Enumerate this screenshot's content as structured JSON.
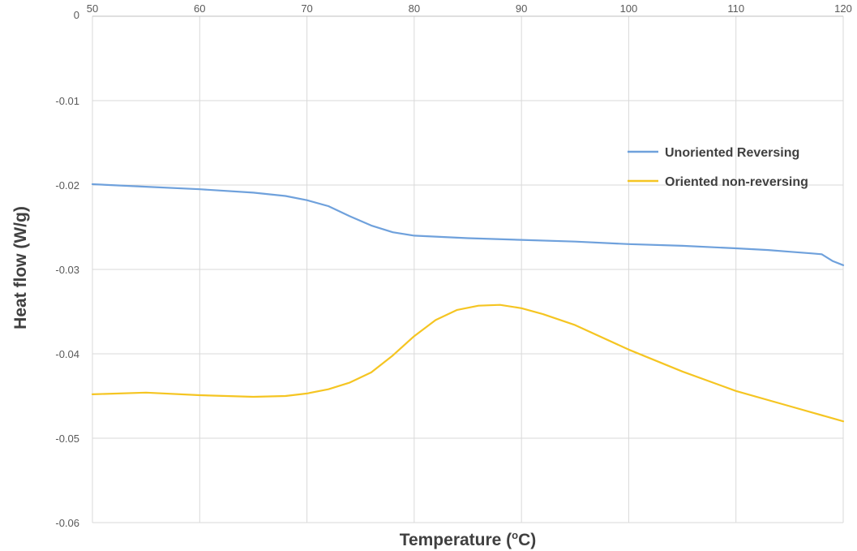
{
  "chart_data": {
    "type": "line",
    "xlabel": "Temperature (",
    "xlabel_sup": "o",
    "xlabel_end": "C)",
    "ylabel": "Heat flow (W/g)",
    "xlim": [
      50,
      120
    ],
    "ylim": [
      -0.06,
      0
    ],
    "x_ticks": [
      50,
      60,
      70,
      80,
      90,
      100,
      110,
      120
    ],
    "x_tick_labels": [
      "50",
      "60",
      "70",
      "80",
      "90",
      "100",
      "110",
      "120"
    ],
    "y_ticks": [
      0,
      -0.01,
      -0.02,
      -0.03,
      -0.04,
      -0.05,
      -0.06
    ],
    "y_tick_labels": [
      "0",
      "-0.01",
      "-0.02",
      "-0.03",
      "-0.04",
      "-0.05",
      "-0.06"
    ],
    "x_axis_position": "top",
    "grid": true,
    "legend_position": "right",
    "series": [
      {
        "name": "Unoriented Reversing",
        "color": "#6fa1dc",
        "points": [
          [
            50,
            -0.0199
          ],
          [
            55,
            -0.0202
          ],
          [
            60,
            -0.0205
          ],
          [
            65,
            -0.0209
          ],
          [
            68,
            -0.0213
          ],
          [
            70,
            -0.0218
          ],
          [
            72,
            -0.0225
          ],
          [
            74,
            -0.0237
          ],
          [
            76,
            -0.0248
          ],
          [
            78,
            -0.0256
          ],
          [
            80,
            -0.026
          ],
          [
            85,
            -0.0263
          ],
          [
            90,
            -0.0265
          ],
          [
            95,
            -0.0267
          ],
          [
            100,
            -0.027
          ],
          [
            105,
            -0.0272
          ],
          [
            110,
            -0.0275
          ],
          [
            113,
            -0.0277
          ],
          [
            115,
            -0.0279
          ],
          [
            117,
            -0.0281
          ],
          [
            118,
            -0.0282
          ],
          [
            119,
            -0.029
          ],
          [
            120,
            -0.0295
          ]
        ]
      },
      {
        "name": "Oriented non-reversing",
        "color": "#f5c522",
        "points": [
          [
            50,
            -0.0448
          ],
          [
            55,
            -0.0446
          ],
          [
            60,
            -0.0449
          ],
          [
            65,
            -0.0451
          ],
          [
            68,
            -0.045
          ],
          [
            70,
            -0.0447
          ],
          [
            72,
            -0.0442
          ],
          [
            74,
            -0.0434
          ],
          [
            76,
            -0.0422
          ],
          [
            78,
            -0.0402
          ],
          [
            80,
            -0.0379
          ],
          [
            82,
            -0.036
          ],
          [
            84,
            -0.0348
          ],
          [
            86,
            -0.0343
          ],
          [
            88,
            -0.0342
          ],
          [
            90,
            -0.0346
          ],
          [
            92,
            -0.0353
          ],
          [
            95,
            -0.0366
          ],
          [
            100,
            -0.0395
          ],
          [
            105,
            -0.0421
          ],
          [
            110,
            -0.0444
          ],
          [
            115,
            -0.0462
          ],
          [
            120,
            -0.048
          ]
        ]
      }
    ]
  }
}
